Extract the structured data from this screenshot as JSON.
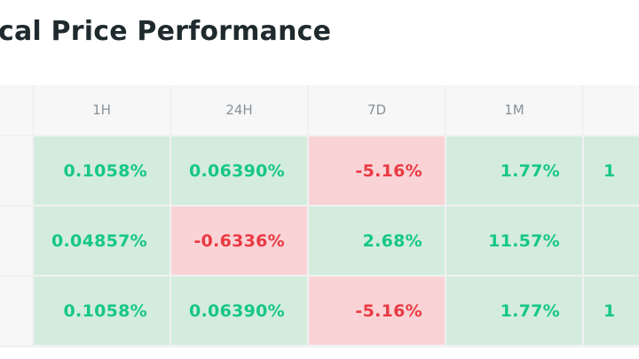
{
  "title": "cal Price Performance",
  "columns": [
    "1H",
    "24H",
    "7D",
    "1M",
    ""
  ],
  "rows": [
    {
      "cells": [
        {
          "text": "0.1058%",
          "trend": "up"
        },
        {
          "text": "0.06390%",
          "trend": "up"
        },
        {
          "text": "-5.16%",
          "trend": "down"
        },
        {
          "text": "1.77%",
          "trend": "up"
        },
        {
          "text": "1",
          "trend": "up"
        }
      ]
    },
    {
      "cells": [
        {
          "text": "0.04857%",
          "trend": "up"
        },
        {
          "text": "-0.6336%",
          "trend": "down"
        },
        {
          "text": "2.68%",
          "trend": "up"
        },
        {
          "text": "11.57%",
          "trend": "up"
        },
        {
          "text": "",
          "trend": "up"
        }
      ]
    },
    {
      "cells": [
        {
          "text": "0.1058%",
          "trend": "up"
        },
        {
          "text": "0.06390%",
          "trend": "up"
        },
        {
          "text": "-5.16%",
          "trend": "down"
        },
        {
          "text": "1.77%",
          "trend": "up"
        },
        {
          "text": "1",
          "trend": "up"
        }
      ]
    }
  ],
  "colors": {
    "up_text": "#16c784",
    "up_bg": "#d3ecde",
    "down_text": "#ea3943",
    "down_bg": "#f9d3d6"
  }
}
